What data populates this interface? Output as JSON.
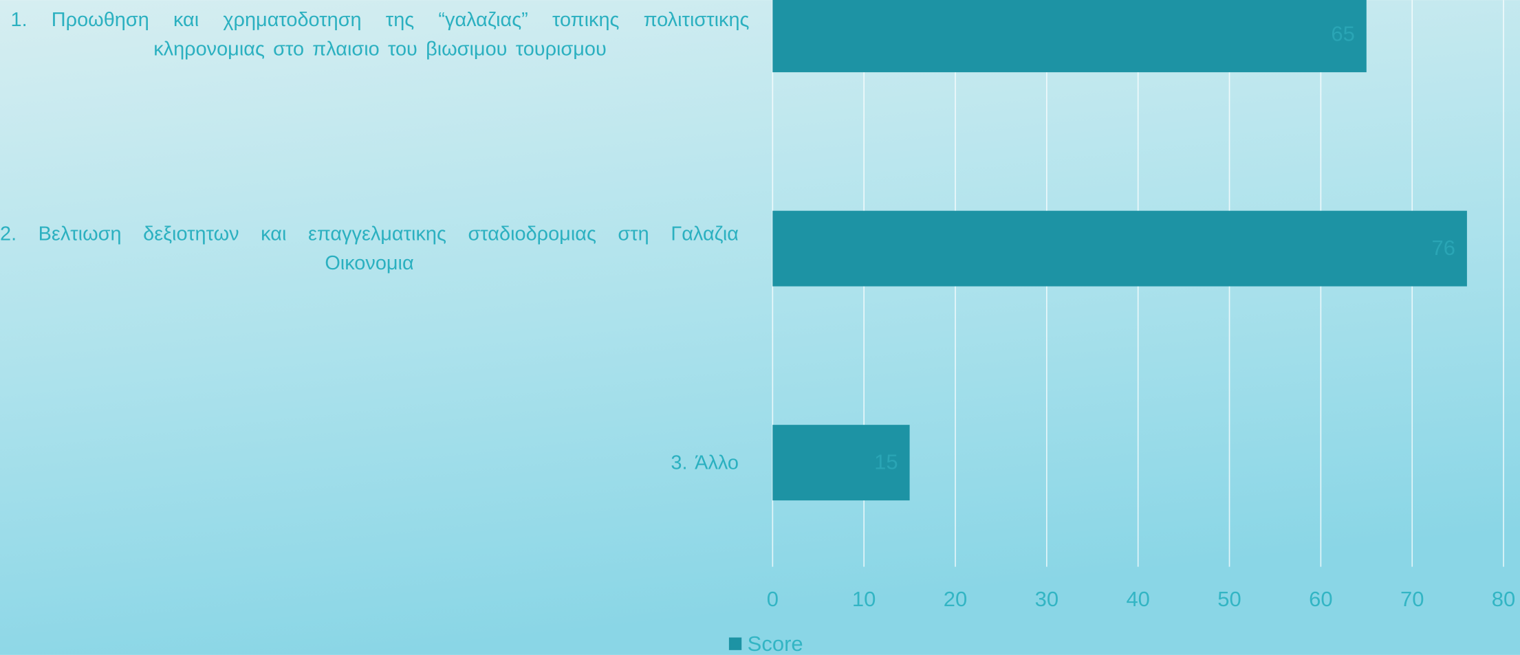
{
  "chart_data": {
    "type": "bar",
    "orientation": "horizontal",
    "categories": [
      "1. Προωθηση και χρηματοδοτηση της “γαλαζιας” τοπικης πολιτιστικης κληρονομιας στο πλαισιο του βιωσιμου τουρισμου",
      "2. Βελτιωση δεξιοτητων και επαγγελματικης σταδιοδρομιας στη Γαλαζια Οικονομια",
      "3. Άλλο"
    ],
    "series": [
      {
        "name": "Score",
        "color": "#1d93a4",
        "values": [
          65,
          76,
          15
        ]
      }
    ],
    "xlim": [
      0,
      80
    ],
    "xticks": [
      0,
      10,
      20,
      30,
      40,
      50,
      60,
      70,
      80
    ],
    "grid": true,
    "legend": "bottom"
  }
}
